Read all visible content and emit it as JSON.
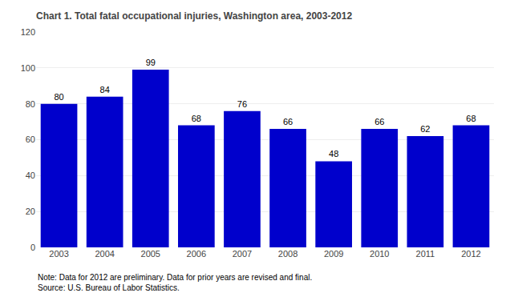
{
  "chart_data": {
    "type": "bar",
    "title": "Chart 1. Total fatal occupational injuries, Washington area, 2003-2012",
    "categories": [
      "2003",
      "2004",
      "2005",
      "2006",
      "2007",
      "2008",
      "2009",
      "2010",
      "2011",
      "2012"
    ],
    "values": [
      80,
      84,
      99,
      68,
      76,
      66,
      48,
      66,
      62,
      68
    ],
    "color": "#0000cc",
    "ylim": [
      0,
      120
    ],
    "yticks": [
      0,
      20,
      40,
      60,
      80,
      100,
      120
    ],
    "grid": true,
    "data_labels": true,
    "annotations": [
      "Note: Data for 2012 are preliminary. Data for prior years are revised and final.",
      "Source: U.S. Bureau of Labor Statistics."
    ]
  }
}
